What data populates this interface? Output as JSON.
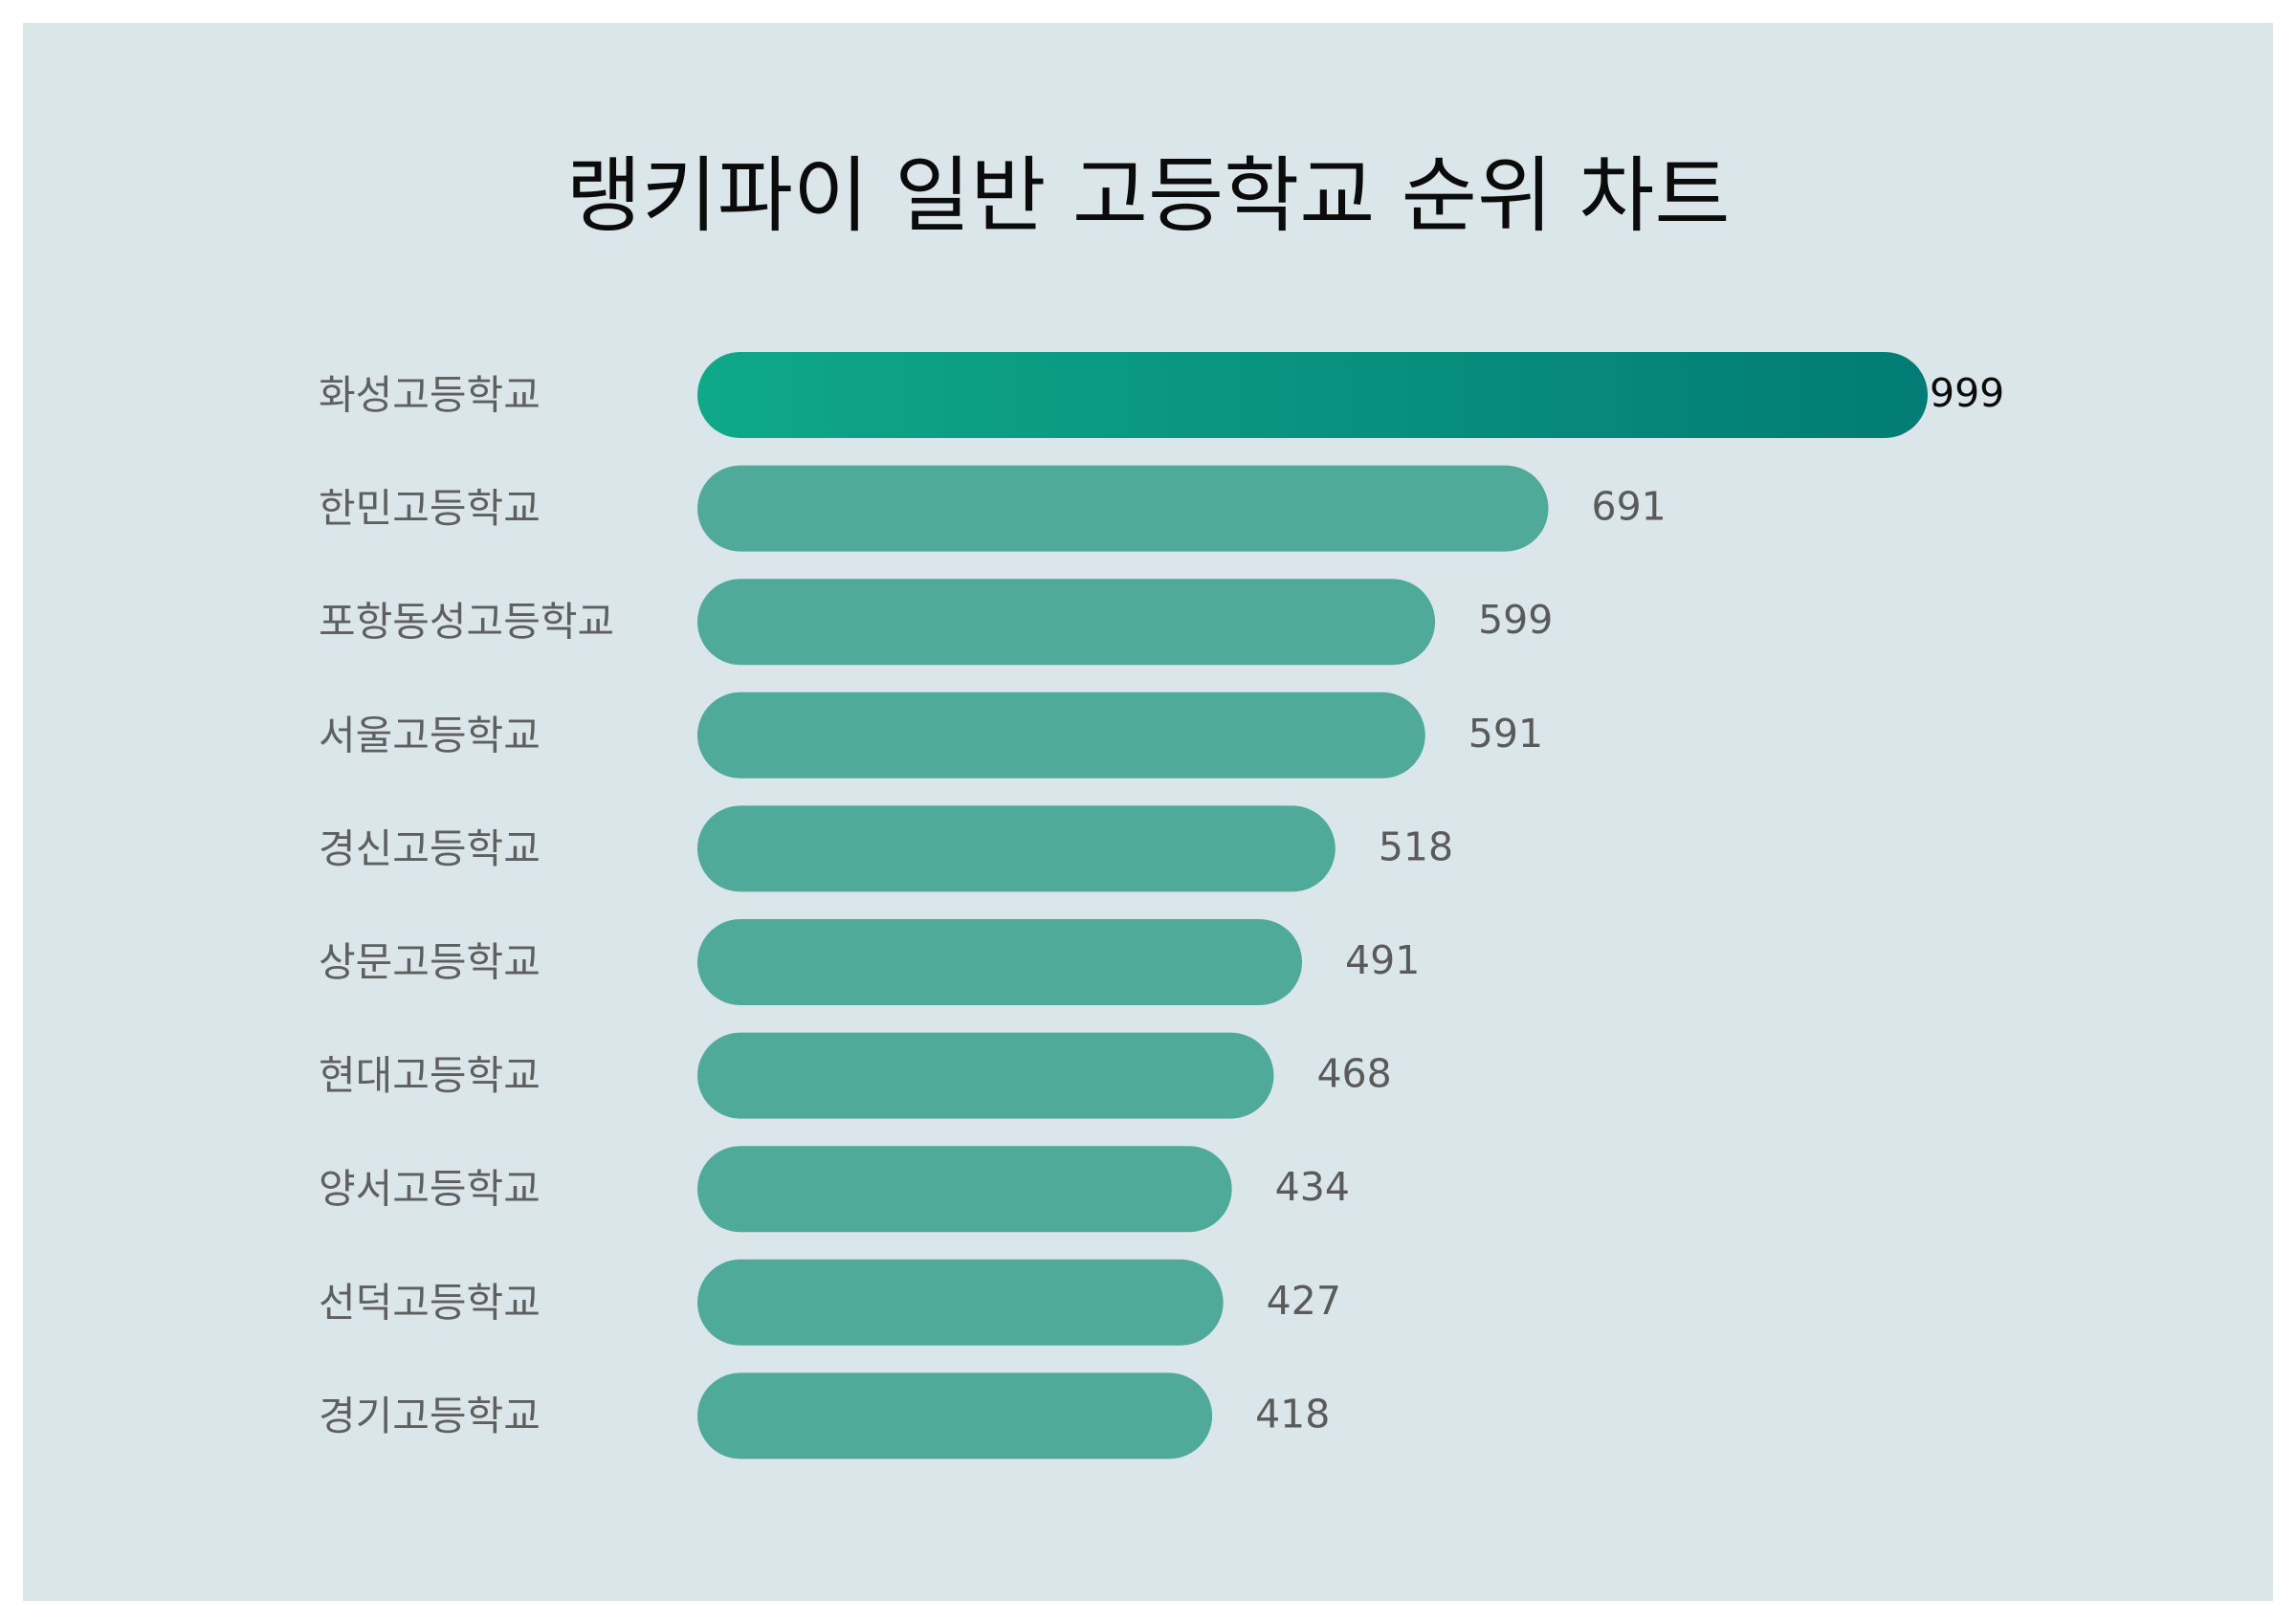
{
  "chart_data": {
    "type": "bar",
    "orientation": "horizontal",
    "title": "랭키파이 일반 고등학교 순위 차트",
    "categories": [
      "화성고등학교",
      "한민고등학교",
      "포항동성고등학교",
      "서울고등학교",
      "경신고등학교",
      "상문고등학교",
      "현대고등학교",
      "양서고등학교",
      "선덕고등학교",
      "경기고등학교"
    ],
    "values": [
      999,
      691,
      599,
      591,
      518,
      491,
      468,
      434,
      427,
      418
    ],
    "value_labels": [
      "999",
      "691",
      "599",
      "591",
      "518",
      "491",
      "468",
      "434",
      "427",
      "418"
    ],
    "xlim": [
      0,
      999
    ],
    "grid": false,
    "legend": "none",
    "colors": {
      "background": "#dbe6ea",
      "bar": "#50aa99",
      "top_bar_start": "#0fa88a",
      "top_bar_end": "#027c74",
      "label": "#5f5f5f",
      "title": "#0b0b0b"
    }
  }
}
